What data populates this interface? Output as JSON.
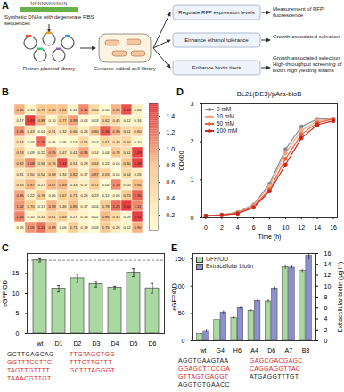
{
  "diagram": {
    "label": "A",
    "insert": "NNNNNNNNNN",
    "source": "Synthetic DNAs with degenerate RBS sequences",
    "plasmids": "Retron plasmid library",
    "cells": "Genome edited cell library",
    "goals": [
      "Regulate RFP expression levels",
      "Enhance ethanol tolerance",
      "Enhance biotin titers"
    ],
    "readouts": [
      "Measurement of RFP fluorescence",
      "Growth-associated selection",
      "Growth-associated selection",
      "High-throughput screening of biotin high yielding strains"
    ]
  },
  "chart_data": [
    {
      "type": "heatmap",
      "title": "B",
      "tick_labels": false,
      "values": [
        [
          0.9,
          0.13,
          0.75,
          0.8,
          0.81,
          0.11,
          1.1,
          0.5,
          0.05,
          0.9,
          1.39,
          0.22
        ],
        [
          0.17,
          1.49,
          0.88,
          0.1,
          0.77,
          0.99,
          0.04,
          0.03,
          0.62,
          0.45,
          0.12,
          0.16
        ],
        [
          1.05,
          0.43,
          0.04,
          0.51,
          0.32,
          0.66,
          0.26,
          0.8,
          1.36,
          0.9,
          0.51,
          0.6
        ],
        [
          0.44,
          0.03,
          1.26,
          0.05,
          0.05,
          0.07,
          0.55,
          0.07,
          0.61,
          0.49,
          0.56,
          0.1
        ],
        [
          0.74,
          0.09,
          0.22,
          0.95,
          0.47,
          0.41,
          0.96,
          0.14,
          0.04,
          0.78,
          0.51,
          1.49
        ],
        [
          0.82,
          1.08,
          0.56,
          0.76,
          1.42,
          0.51,
          0.28,
          0.64,
          0.22,
          0.04,
          0.8,
          1.48
        ],
        [
          0.31,
          0.5,
          0.54,
          0.68,
          0.34,
          0.82,
          0.17,
          0.87,
          0.63,
          0.04,
          0.54,
          0.26
        ],
        [
          0.53,
          0.87,
          0.27,
          0.87,
          0.89,
          0.33,
          0.17,
          0.71,
          0.04,
          1.1,
          0.2,
          0.84
        ],
        [
          0.96,
          0.22,
          0.76,
          0.06,
          0.67,
          0.71,
          0.25,
          0.23,
          0.12,
          0.06,
          0.73,
          1.3
        ],
        [
          1.02,
          0.7,
          0.13,
          0.89,
          0.46,
          0.85,
          0.17,
          0.04,
          0.78,
          1.25,
          1.5,
          1.11
        ],
        [
          1.16,
          0.1,
          0.31,
          0.61,
          0.65,
          0.27,
          0.14,
          0.02,
          0.86,
          0.53,
          0.09,
          1.51
        ],
        [
          0.05,
          1.05,
          1.24,
          0.88,
          0.06,
          0.71,
          0.19,
          0.03,
          0.75,
          0.26,
          0.12,
          0.9
        ]
      ],
      "value_labels": [
        [
          "0.90",
          "0.13",
          "0.75",
          "0.80",
          "0.81",
          "0.11",
          "1.10",
          "0.50",
          "0.05",
          "0.90",
          "1.39",
          "0.22"
        ],
        [
          "0.17",
          "1.49",
          "0.88",
          "0.10",
          "0.77",
          "0.99",
          "0.04",
          "0.03",
          "0.62",
          "0.45",
          "0.12",
          "0.16"
        ],
        [
          "1.05",
          "0.43",
          "0.04",
          "0.51",
          "0.32",
          "0.66",
          "0.26",
          "0.80",
          "1.36",
          "0.90",
          "0.51",
          "0.60"
        ],
        [
          "0.44",
          "0.03",
          "1.26",
          "0.05",
          "0.05",
          "0.07",
          "0.55",
          "0.07",
          "0.61",
          "0.49",
          "0.56",
          "0.10"
        ],
        [
          "0.74",
          "0.09",
          "0.22",
          "0.95",
          "0.47",
          "0.41",
          "0.96",
          "0.14",
          "0.04",
          "0.78",
          "0.51",
          "1.49"
        ],
        [
          "0.82",
          "1.08",
          "0.56",
          "0.76",
          "1.42",
          "0.51",
          "0.28",
          "0.64",
          "0.22",
          "0.04",
          "0.80",
          "1.48"
        ],
        [
          "0.31",
          "0.50",
          "0.54",
          "0.68",
          "0.34",
          "0.82",
          "0.17",
          "0.87",
          "0.63",
          "0.04",
          "0.54",
          "0.26"
        ],
        [
          "0.53",
          "0.87",
          "0.27",
          "0.87",
          "0.89",
          "0.33",
          "0.17",
          "0.71",
          "0.04",
          "1.10",
          "0.20",
          "0.84"
        ],
        [
          "0.96",
          "0.22",
          "0.76",
          "0.06",
          "0.67",
          "0.71",
          "0.25",
          "0.23",
          "0.12",
          "0.06",
          "0.73",
          "1.30"
        ],
        [
          "1.02",
          "0.70",
          "0.13",
          "0.89",
          "0.46",
          "0.85",
          "0.17",
          "0.04",
          "0.78",
          "1.25",
          "1.50",
          "1.11"
        ],
        [
          "1.16",
          "0.10",
          "0.31",
          "0.61",
          "0.65",
          "0.27",
          "0.14",
          "0.02",
          "0.86",
          "0.53",
          "0.09",
          "1.51"
        ],
        [
          "0.05",
          "1.05",
          "1.24",
          "0.88",
          "0.06",
          "0.71",
          "0.19",
          "0.03",
          "0.75",
          "0.26",
          "0.12",
          "0.90"
        ]
      ],
      "colorbar_lim": [
        0.02,
        1.55
      ],
      "colorbar_ticks": [
        0.2,
        0.4,
        0.6,
        0.8,
        {
          "value": 1,
          "label": "1.0"
        },
        1.2,
        1.4
      ]
    },
    {
      "type": "bar",
      "title": "C",
      "categories": [
        "wt",
        "D1",
        "D2",
        "D3",
        "D4",
        "D5",
        "D6"
      ],
      "values": [
        18.3,
        11.2,
        13.8,
        12.3,
        11.5,
        15.2,
        11.3
      ],
      "errors": [
        0.4,
        0.8,
        1.0,
        0.7,
        0.3,
        1.0,
        1.2
      ],
      "color": "#a9d8a0",
      "ylabel": "eGFP/OD",
      "ylim": [
        0,
        20
      ],
      "yticks": [
        0,
        5,
        10,
        15
      ],
      "annotations": [
        {
          "text": "GCTTGAGCAG",
          "color": "#222222"
        },
        {
          "text": "GGTTTCCTTC",
          "color": "#d62728"
        },
        {
          "text": "TAGTTGTTTT",
          "color": "#d62728"
        },
        {
          "text": "TAAACGTTGT",
          "color": "#d62728"
        },
        {
          "text": "TTGTAGCTGG",
          "color": "#d62728"
        },
        {
          "text": "TTTCTTGTTT",
          "color": "#d62728"
        },
        {
          "text": "GCTTTAGGGT",
          "color": "#d62728"
        }
      ]
    },
    {
      "type": "line",
      "title": "D",
      "subtitle": "BL21(DE3)/pAra-bioB",
      "xlabel": "Time (h)",
      "ylabel": "OD600",
      "x": [
        0,
        2,
        4,
        6,
        8,
        10,
        12,
        14,
        16
      ],
      "series": [
        {
          "name": "0 mM",
          "color": "#8c8c8c",
          "values": [
            0.05,
            0.08,
            0.15,
            0.35,
            0.9,
            1.8,
            2.4,
            2.6,
            2.6
          ]
        },
        {
          "name": "10 mM",
          "color": "#f4a582",
          "values": [
            0.05,
            0.08,
            0.14,
            0.33,
            0.85,
            1.7,
            2.3,
            2.55,
            2.6
          ]
        },
        {
          "name": "50 mM",
          "color": "#e8613c",
          "values": [
            0.05,
            0.07,
            0.12,
            0.3,
            0.75,
            1.55,
            2.2,
            2.5,
            2.6
          ]
        },
        {
          "name": "100 mM",
          "color": "#c8281e",
          "values": [
            0.05,
            0.07,
            0.11,
            0.27,
            0.7,
            1.4,
            2.1,
            2.45,
            2.55
          ]
        }
      ],
      "xlim": [
        -0.5,
        16.5
      ],
      "ylim": [
        0,
        3
      ],
      "xticks": [
        0,
        2,
        4,
        6,
        8,
        10,
        12,
        14,
        16
      ],
      "yticks": [
        0,
        1,
        2,
        3
      ],
      "marker": "circle",
      "legend": "top-left"
    },
    {
      "type": "bar",
      "title": "E",
      "categories": [
        "wt",
        "G4",
        "H6",
        "A4",
        "D6",
        "A7",
        "B8"
      ],
      "series": [
        {
          "name": "GFP/OD",
          "color": "#a9d8a0",
          "values": [
            12,
            38,
            42,
            55,
            72,
            135,
            128
          ],
          "errors": [
            1,
            2,
            2,
            2,
            3,
            4,
            3
          ]
        },
        {
          "name": "Extracellular biotin",
          "color": "#8c8fd0",
          "axis": "y2",
          "values": [
            1.8,
            5.2,
            6.0,
            7.3,
            9.6,
            13.4,
            15.6
          ],
          "errors": [
            0.3,
            0.3,
            0.2,
            0.3,
            0.3,
            0.3,
            0.8
          ]
        }
      ],
      "ylabel": "eGFP/OD",
      "y2label": "Extracellular biotin (μg l⁻¹)",
      "ylim": [
        0,
        160
      ],
      "yticks": [
        0,
        50,
        100,
        150
      ],
      "y2lim": [
        0,
        16
      ],
      "y2ticks": [
        0,
        2,
        4,
        6,
        8,
        10,
        12,
        14,
        16
      ],
      "legend": "top-left",
      "annotations": [
        {
          "text": "AGGTGAAGTAA",
          "color": "#222222"
        },
        {
          "text": "GGAGCTTCCGA",
          "color": "#d62728"
        },
        {
          "text": "GTTAGTGAGGT",
          "color": "#d62728"
        },
        {
          "text": "AGGTGTGAACC",
          "color": "#222222"
        },
        {
          "text": "GAGCGACGAGC",
          "color": "#d62728"
        },
        {
          "text": "CAGGAGGTTAC",
          "color": "#d62728"
        },
        {
          "text": "ATGAGGTTTGT",
          "color": "#222222"
        }
      ]
    }
  ]
}
